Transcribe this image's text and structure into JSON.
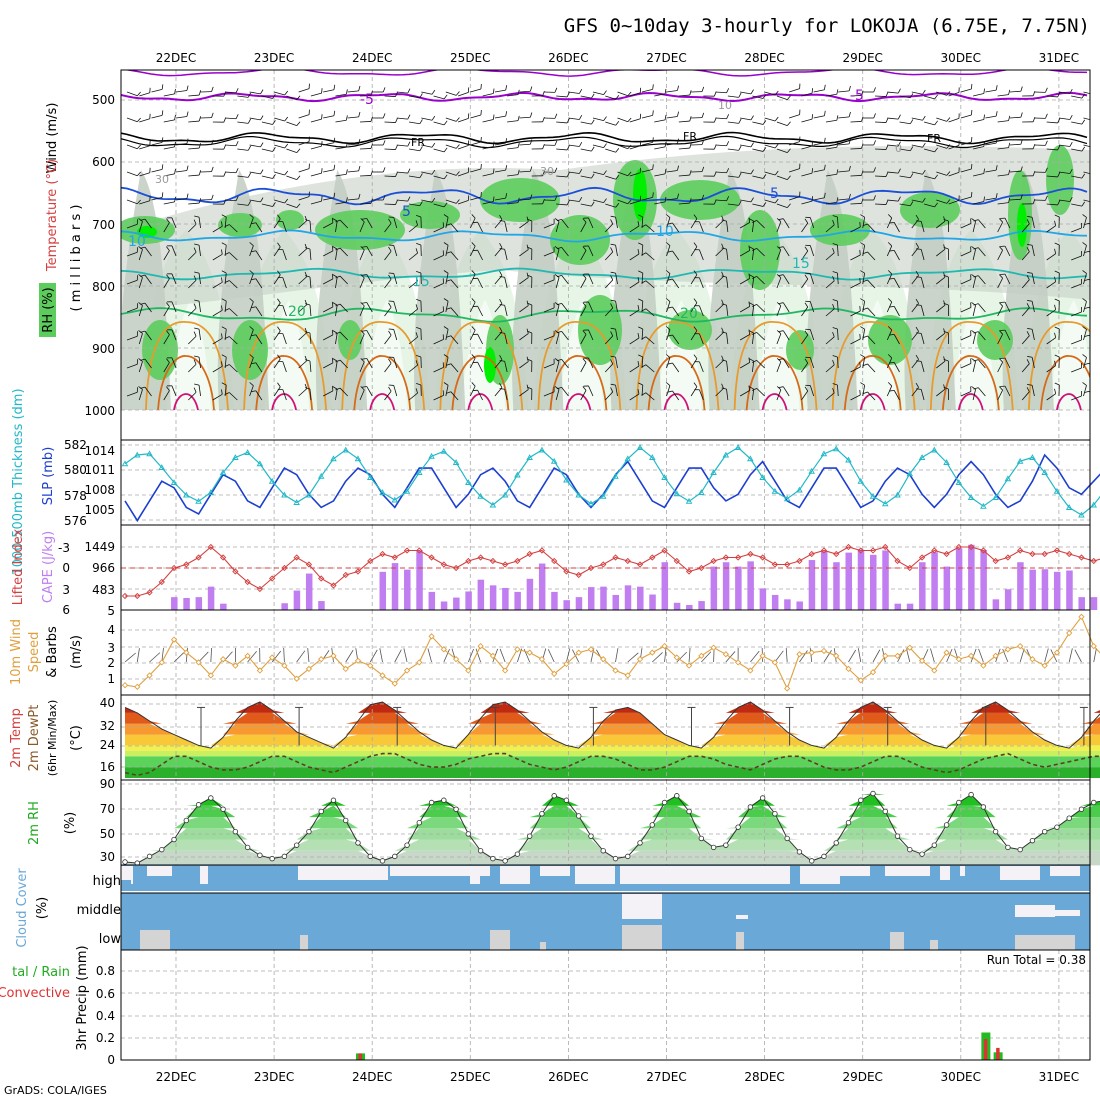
{
  "title": "GFS 0~10day 3-hourly for LOKOJA (6.75E, 7.75N)",
  "credit": "GrADS: COLA/IGES",
  "colors": {
    "rh_light": "#e6f5e6",
    "rh_mid": "#c2ccc2",
    "rh_green": "#5ccc5c",
    "rh_bright": "#00ee00",
    "wind": "#000000",
    "t_purple": "#9900cc",
    "t_blue": "#1c4fd8",
    "t_cyan": "#22a6e6",
    "t_teal": "#20b8b0",
    "t_green": "#1fb860",
    "t_orange": "#e89a2c",
    "t_dark_orange": "#d66a18",
    "t_magenta": "#d0107a",
    "slp": "#1c3fd0",
    "thick": "#22b8c8",
    "cape": "#c07ef0",
    "li": "#d44040",
    "wind10": "#e0a040",
    "rh2m": "#22aa22",
    "cloud": "#6aa8d8",
    "cloud_clear": "#f4f2f6",
    "cloud_low": "#d4d4d4",
    "precip_total": "#22bb22",
    "precip_conv": "#dd3333"
  },
  "date_labels": [
    "22DEC",
    "23DEC",
    "24DEC",
    "25DEC",
    "26DEC",
    "27DEC",
    "28DEC",
    "29DEC",
    "30DEC",
    "31DEC"
  ],
  "panels": {
    "upper": {
      "ylabel_wind": "Wind (m/s)",
      "ylabel_temp": "Temperature (°C)",
      "ylabel_rh": "RH (%)",
      "ylabel_mb": "( m i l l i b a r s )",
      "yticks": [
        "500",
        "600",
        "700",
        "800",
        "900",
        "1000"
      ],
      "contour_labels": {
        "t_minus5": "-5",
        "t_fr": "FR",
        "t_5": "5",
        "t_10": "10",
        "t_15": "15",
        "t_20": "20",
        "rh_30": "30",
        "rh_10": "10",
        "rh_0": "0"
      }
    },
    "slp": {
      "ylabel_thick": "1000-500mb Thickness (dm)",
      "ylabel_slp": "SLP (mb)",
      "left_ticks": [
        "582",
        "580",
        "578",
        "576"
      ],
      "right_ticks": [
        "1014",
        "1011",
        "1008",
        "1005"
      ]
    },
    "cape": {
      "ylabel_li": "Lifted Index",
      "ylabel_cape": "CAPE (J/kg)",
      "left_ticks": [
        "-3",
        "0",
        "3",
        "6"
      ],
      "right_ticks": [
        "1449",
        "966",
        "483",
        "5"
      ]
    },
    "wind10": {
      "ylabel_a": "10m Wind",
      "ylabel_b": "Speed",
      "ylabel_c": "& Barbs",
      "ylabel_unit": "(m/s)",
      "yticks": [
        "4",
        "3",
        "2",
        "1"
      ]
    },
    "temp2m": {
      "ylabel_a": "2m Temp",
      "ylabel_b": "2m DewPt",
      "ylabel_c": "(6hr Min/Max)",
      "ylabel_unit": "(°C)",
      "yticks": [
        "40",
        "32",
        "24",
        "16"
      ]
    },
    "rh2m": {
      "ylabel": "2m RH",
      "ylabel_unit": "(%)",
      "yticks": [
        "90",
        "70",
        "50",
        "30"
      ]
    },
    "cloud": {
      "ylabel": "Cloud Cover",
      "ylabel_unit": "(%)",
      "levels": [
        "high",
        "middle",
        "low"
      ]
    },
    "precip": {
      "ylabel_a": "tal / Rain",
      "ylabel_b": "Convective",
      "ylabel_unit": "3hr Precip (mm)",
      "yticks": [
        "0.8",
        "0.6",
        "0.4",
        "0.2",
        "0"
      ],
      "run_total": "Run Total = 0.38"
    }
  },
  "chart_data": [
    {
      "type": "line",
      "title": "1000-500mb Thickness (dm) / SLP (mb)",
      "series": [
        {
          "name": "SLP (mb)",
          "values": [
            1007,
            1004,
            1007,
            1010,
            1009,
            1006,
            1005,
            1008,
            1011,
            1010,
            1007,
            1006,
            1009,
            1012,
            1011,
            1008,
            1006,
            1007,
            1010,
            1012,
            1011,
            1008,
            1006,
            1009,
            1012,
            1012,
            1009,
            1006,
            1008,
            1011,
            1012,
            1010,
            1007,
            1006,
            1009,
            1012,
            1011,
            1008,
            1006,
            1008,
            1011,
            1013,
            1010,
            1007,
            1006,
            1009,
            1012,
            1012,
            1009,
            1007,
            1008,
            1011,
            1013,
            1010,
            1007,
            1006,
            1009,
            1012,
            1012,
            1009,
            1006,
            1007,
            1010,
            1012,
            1011,
            1008,
            1006,
            1008,
            1011,
            1013,
            1011,
            1008,
            1006,
            1007,
            1010,
            1014,
            1012,
            1009,
            1008,
            1010,
            1012,
            1013
          ]
        },
        {
          "name": "Thickness (dm)",
          "values": [
            580.5,
            581.2,
            581.3,
            580.2,
            579.0,
            578.0,
            577.5,
            578.2,
            579.8,
            581.0,
            581.4,
            580.5,
            579.1,
            578.0,
            577.4,
            578.0,
            579.5,
            580.9,
            581.6,
            580.9,
            579.4,
            578.2,
            577.6,
            578.3,
            579.8,
            581.1,
            581.5,
            580.6,
            579.0,
            577.9,
            577.2,
            578.0,
            579.6,
            581.0,
            581.6,
            580.7,
            579.2,
            578.0,
            577.3,
            577.9,
            579.5,
            580.9,
            581.8,
            581.0,
            579.4,
            578.1,
            577.5,
            578.2,
            579.8,
            581.2,
            581.8,
            580.9,
            579.4,
            578.3,
            577.7,
            578.4,
            579.9,
            581.3,
            581.7,
            580.8,
            579.1,
            577.9,
            577.3,
            578.0,
            579.7,
            581.0,
            581.6,
            580.6,
            579.0,
            577.8,
            577.1,
            577.8,
            579.3,
            580.7,
            581.0,
            579.8,
            578.3,
            577.0,
            576.4,
            577.2,
            578.5,
            579.9
          ]
        }
      ]
    },
    {
      "type": "bar",
      "title": "CAPE (J/kg) / Lifted Index",
      "series": [
        {
          "name": "CAPE (J/kg)",
          "values": [
            5,
            5,
            5,
            5,
            300,
            280,
            300,
            540,
            150,
            5,
            5,
            5,
            5,
            160,
            450,
            840,
            210,
            5,
            5,
            5,
            5,
            880,
            1080,
            930,
            1370,
            420,
            200,
            290,
            430,
            700,
            570,
            510,
            420,
            720,
            1070,
            420,
            230,
            300,
            530,
            540,
            350,
            570,
            540,
            360,
            1100,
            170,
            120,
            210,
            1000,
            1100,
            1000,
            1120,
            500,
            350,
            250,
            200,
            1150,
            1350,
            1100,
            1320,
            1390,
            1270,
            1370,
            150,
            150,
            1100,
            1330,
            1000,
            1420,
            1500,
            1380,
            250,
            480,
            1100,
            930,
            940,
            880,
            910,
            300,
            300,
            380,
            380
          ]
        },
        {
          "name": "Lifted Index",
          "values": [
            4.0,
            4.0,
            3.5,
            2.0,
            0.0,
            -0.5,
            -1.5,
            -3.0,
            -1.5,
            0.5,
            2.0,
            3.0,
            1.5,
            0.0,
            -1.5,
            -0.5,
            1.5,
            2.5,
            1.0,
            0.5,
            -1.0,
            -2.0,
            -1.5,
            -2.5,
            -2.5,
            -1.5,
            -0.5,
            0.0,
            -1.0,
            -1.5,
            -1.0,
            -0.5,
            -1.0,
            -2.0,
            -2.5,
            -1.0,
            0.5,
            1.0,
            0.0,
            -0.5,
            -1.5,
            -1.0,
            -0.5,
            -1.5,
            -2.5,
            -1.0,
            0.5,
            0.0,
            -1.0,
            -1.5,
            -1.5,
            -2.0,
            -1.5,
            -0.5,
            -0.5,
            -1.0,
            -2.0,
            -2.5,
            -2.0,
            -3.0,
            -2.5,
            -2.5,
            -3.0,
            -1.0,
            0.0,
            -1.5,
            -2.5,
            -2.0,
            -3.0,
            -3.0,
            -2.5,
            -1.0,
            -1.5,
            -2.5,
            -2.0,
            -2.0,
            -2.5,
            -2.0,
            -1.5,
            -1.0,
            -1.5,
            -1.0
          ]
        }
      ]
    },
    {
      "type": "line",
      "title": "10m Wind Speed (m/s)",
      "ylim": [
        0,
        5
      ],
      "series": [
        {
          "name": "10m Wind Speed",
          "values": [
            0.6,
            0.5,
            1.2,
            2.0,
            3.4,
            2.6,
            2.0,
            1.2,
            2.2,
            1.8,
            2.4,
            1.5,
            2.3,
            1.8,
            1.0,
            1.6,
            2.2,
            2.4,
            1.6,
            2.1,
            1.8,
            1.2,
            0.7,
            1.5,
            2.0,
            3.6,
            2.8,
            2.2,
            1.5,
            3.0,
            2.4,
            1.5,
            2.8,
            2.6,
            2.2,
            1.3,
            1.9,
            2.6,
            2.8,
            2.2,
            1.5,
            1.2,
            2.2,
            2.6,
            3.0,
            2.3,
            1.8,
            2.4,
            2.9,
            2.5,
            2.0,
            1.5,
            2.4,
            2.0,
            0.4,
            2.5,
            2.6,
            2.7,
            2.4,
            1.6,
            0.9,
            1.4,
            2.4,
            2.4,
            2.9,
            2.1,
            1.5,
            2.6,
            2.2,
            2.4,
            1.8,
            2.4,
            2.8,
            3.0,
            2.2,
            1.8,
            2.6,
            3.8,
            4.8,
            3.0,
            2.2,
            1.9,
            2.7,
            2.5,
            2.3,
            1.4,
            2.0,
            2.5,
            1.6,
            2.3,
            1.5,
            1.3,
            1.8
          ]
        }
      ]
    },
    {
      "type": "area",
      "title": "2m Temp / 2m DewPt (°C)",
      "ylim": [
        10,
        40
      ],
      "series": [
        {
          "name": "2m Temp",
          "values": [
            38,
            36,
            33,
            30,
            28,
            26,
            24,
            23,
            27,
            33,
            38,
            40,
            37,
            33,
            29,
            27,
            25,
            23,
            27,
            33,
            39,
            40,
            37,
            33,
            29,
            26,
            24,
            23,
            28,
            34,
            39,
            40,
            37,
            33,
            29,
            26,
            24,
            23,
            27,
            33,
            37,
            38,
            36,
            32,
            28,
            26,
            24,
            23,
            27,
            33,
            38,
            40,
            37,
            33,
            29,
            26,
            24,
            23,
            27,
            33,
            38,
            40,
            37,
            33,
            29,
            26,
            24,
            23,
            27,
            33,
            38,
            40,
            37,
            33,
            29,
            26,
            24,
            23,
            27,
            33,
            38,
            40,
            37,
            33,
            29,
            26,
            24,
            23
          ]
        },
        {
          "name": "2m DewPt",
          "values": [
            14,
            13,
            14,
            17,
            20,
            20,
            18,
            16,
            15,
            15,
            16,
            18,
            20,
            20,
            18,
            16,
            15,
            14,
            16,
            18,
            20,
            21,
            21,
            19,
            17,
            16,
            16,
            17,
            19,
            20,
            21,
            21,
            19,
            17,
            16,
            15,
            16,
            18,
            20,
            20,
            19,
            17,
            15,
            15,
            16,
            18,
            20,
            20,
            19,
            17,
            16,
            15,
            17,
            19,
            20,
            20,
            18,
            16,
            15,
            15,
            16,
            18,
            20,
            20,
            18,
            16,
            15,
            14,
            15,
            17,
            19,
            20,
            21,
            19,
            17,
            16,
            17,
            18,
            19,
            20,
            20,
            21
          ]
        }
      ]
    },
    {
      "type": "area",
      "title": "2m RH (%)",
      "ylim": [
        22,
        90
      ],
      "series": [
        {
          "name": "2m RH",
          "values": [
            25,
            24,
            30,
            36,
            45,
            62,
            76,
            82,
            72,
            52,
            38,
            31,
            28,
            30,
            40,
            52,
            70,
            80,
            62,
            42,
            30,
            26,
            30,
            40,
            60,
            78,
            80,
            72,
            50,
            35,
            28,
            26,
            32,
            48,
            68,
            84,
            80,
            66,
            48,
            35,
            28,
            30,
            42,
            58,
            78,
            84,
            70,
            46,
            38,
            40,
            56,
            74,
            82,
            68,
            46,
            34,
            26,
            30,
            42,
            60,
            80,
            86,
            70,
            48,
            36,
            32,
            40,
            58,
            78,
            85,
            74,
            52,
            38,
            36,
            44,
            52,
            56,
            64,
            72,
            78,
            80
          ]
        }
      ]
    },
    {
      "type": "bar",
      "title": "3hr Precip (mm)",
      "ylim": [
        0,
        1
      ],
      "series": [
        {
          "name": "Total",
          "values": [
            {
              "date": "24DEC",
              "hour": 9,
              "value": 0.06
            },
            {
              "date": "30DEC",
              "hour": 18,
              "value": 0.25
            },
            {
              "date": "30DEC",
              "hour": 21,
              "value": 0.07
            }
          ]
        },
        {
          "name": "Convective",
          "values": [
            {
              "date": "24DEC",
              "hour": 9,
              "value": 0.06
            },
            {
              "date": "30DEC",
              "hour": 18,
              "value": 0.19
            },
            {
              "date": "30DEC",
              "hour": 21,
              "value": 0.11
            }
          ]
        }
      ],
      "annotation": "Run Total = 0.38"
    }
  ]
}
